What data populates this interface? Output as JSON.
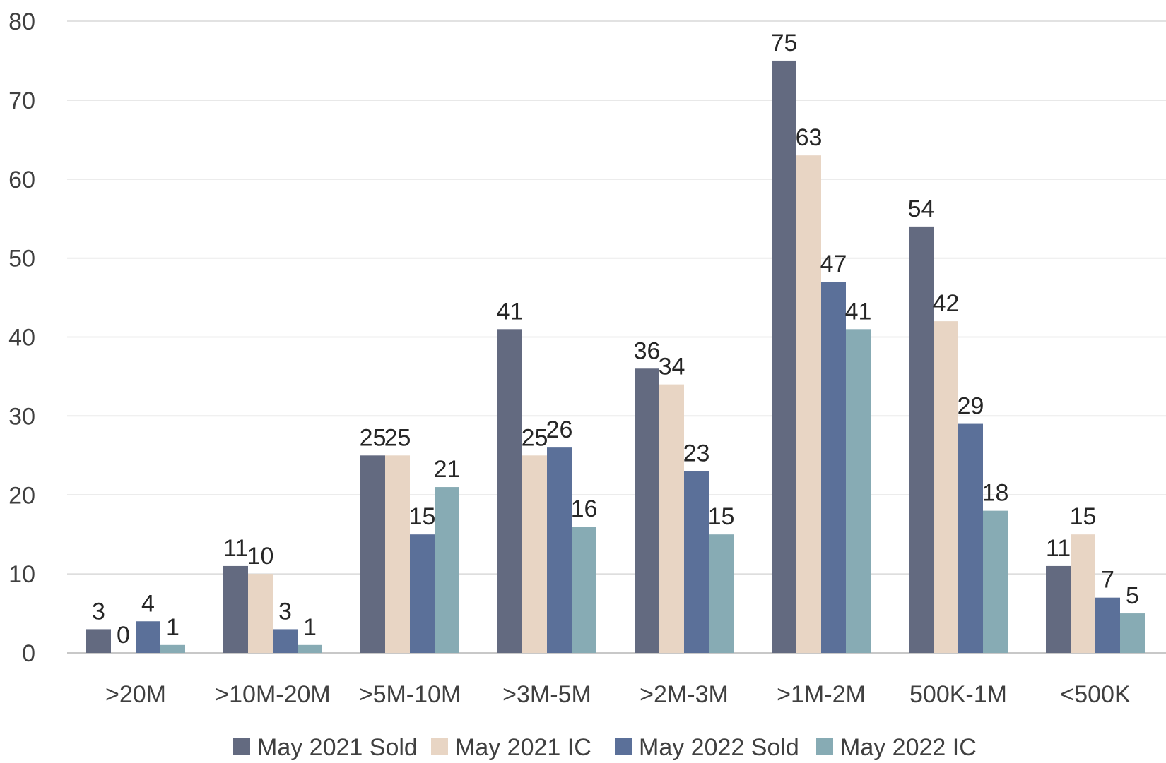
{
  "chart_data": {
    "type": "bar",
    "title": "",
    "xlabel": "",
    "ylabel": "",
    "ylim": [
      0,
      80
    ],
    "yticks": [
      0,
      10,
      20,
      30,
      40,
      50,
      60,
      70,
      80
    ],
    "grid": true,
    "legend_position": "bottom",
    "categories": [
      ">20M",
      ">10M-20M",
      ">5M-10M",
      ">3M-5M",
      ">2M-3M",
      ">1M-2M",
      "500K-1M",
      "<500K"
    ],
    "series": [
      {
        "name": "May 2021 Sold",
        "color": "#636a80",
        "values": [
          3,
          11,
          25,
          41,
          36,
          75,
          54,
          11
        ]
      },
      {
        "name": "May 2021 IC",
        "color": "#e8d5c4",
        "values": [
          0,
          10,
          25,
          25,
          34,
          63,
          42,
          15
        ]
      },
      {
        "name": "May 2022 Sold",
        "color": "#5b7099",
        "values": [
          4,
          3,
          15,
          26,
          23,
          47,
          29,
          7
        ]
      },
      {
        "name": "May 2022 IC",
        "color": "#87abb4",
        "values": [
          1,
          1,
          21,
          16,
          15,
          41,
          18,
          5
        ]
      }
    ]
  }
}
